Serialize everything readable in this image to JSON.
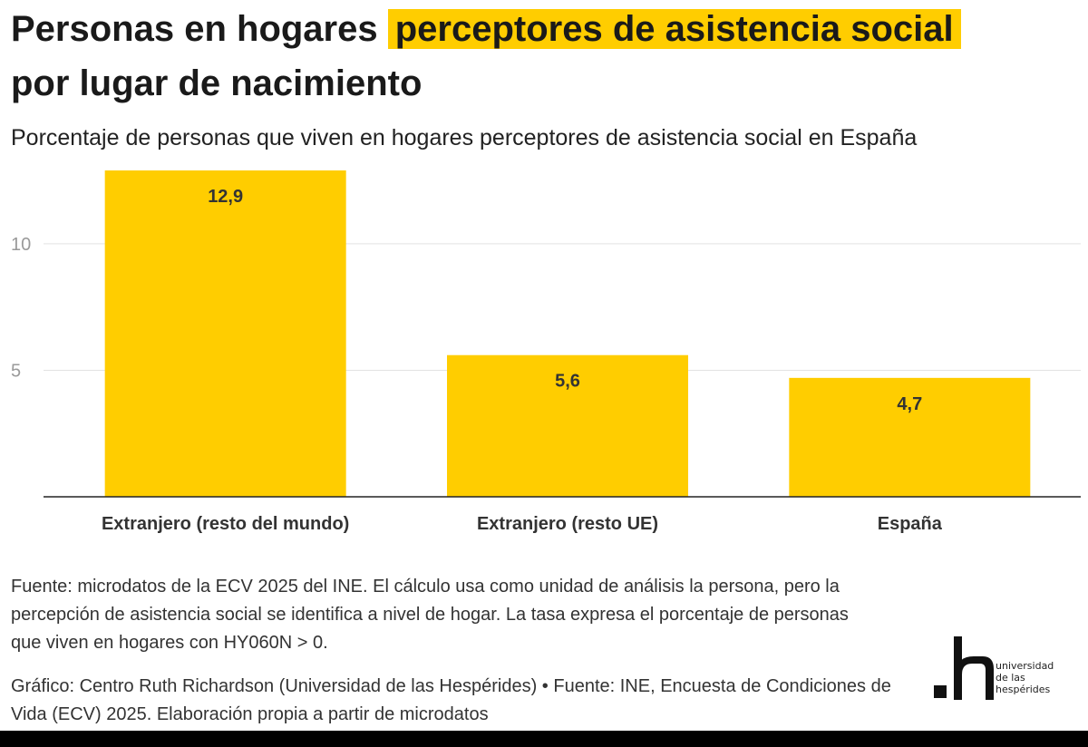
{
  "header": {
    "title_part1": "Personas en hogares",
    "title_highlight": "perceptores de asistencia social",
    "title_part2": "por lugar de nacimiento",
    "subtitle": "Porcentaje de personas que viven en hogares perceptores de asistencia social en España"
  },
  "chart_data": {
    "type": "bar",
    "categories": [
      "Extranjero (resto del mundo)",
      "Extranjero (resto UE)",
      "España"
    ],
    "values": [
      12.9,
      5.6,
      4.7
    ],
    "value_labels": [
      "12,9",
      "5,6",
      "4,7"
    ],
    "ylim": [
      0,
      12.9
    ],
    "yticks": [
      5,
      10
    ],
    "ytick_labels": [
      "5",
      "10"
    ],
    "bar_color": "#ffcd00",
    "grid": true,
    "grid_color": "#e3e3e3"
  },
  "footer": {
    "note": "Fuente: microdatos de la ECV 2025 del INE. El cálculo usa como unidad de análisis la persona, pero la percepción de asistencia social se identifica a nivel de hogar. La tasa expresa el porcentaje de personas que viven en hogares con HY060N > 0.",
    "credit": "Gráfico: Centro Ruth Richardson (Universidad de las Hespérides) • Fuente: INE, Encuesta de Condiciones de Vida (ECV) 2025. Elaboración propia a partir de microdatos"
  },
  "logo": {
    "line1": "universidad",
    "line2": "de las",
    "line3": "hespérides"
  }
}
